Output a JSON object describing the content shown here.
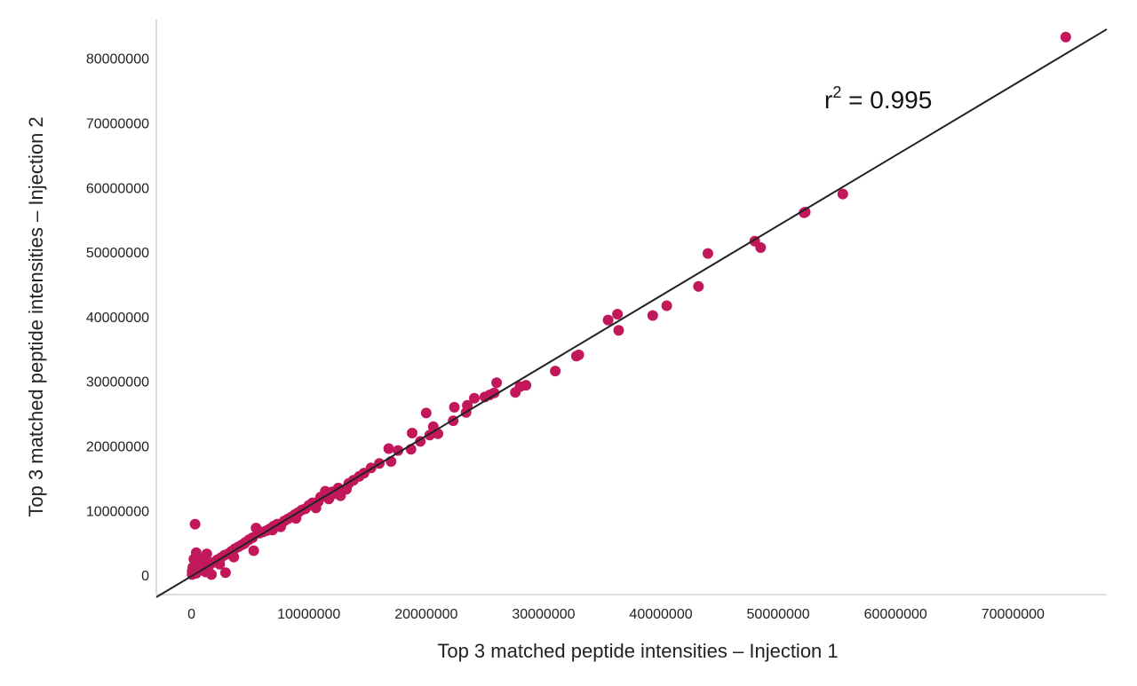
{
  "chart_data": {
    "type": "scatter",
    "title": "",
    "xlabel": "Top 3 matched peptide intensities – Injection 1",
    "ylabel": "Top 3 matched peptide intensities – Injection 2",
    "xlim": [
      -3000000,
      78000000
    ],
    "ylim": [
      -3000000,
      86000000
    ],
    "x_ticks": [
      0,
      10000000,
      20000000,
      30000000,
      40000000,
      50000000,
      60000000,
      70000000
    ],
    "x_tick_labels": [
      "0",
      "10000000",
      "20000000",
      "30000000",
      "40000000",
      "50000000",
      "60000000",
      "70000000"
    ],
    "y_ticks": [
      0,
      10000000,
      20000000,
      30000000,
      40000000,
      50000000,
      60000000,
      70000000,
      80000000
    ],
    "y_tick_labels": [
      "0",
      "10000000",
      "20000000",
      "30000000",
      "40000000",
      "50000000",
      "60000000",
      "70000000",
      "80000000"
    ],
    "grid": false,
    "marker_color": "#c2185b",
    "fit_line_color": "#222222",
    "annotation": {
      "base": "r",
      "sup": "2",
      "rest": " = 0.995"
    },
    "fit_line": [
      [
        -3000000,
        -3400000
      ],
      [
        78000000,
        84500000
      ]
    ],
    "points": [
      [
        74500000,
        83300000
      ],
      [
        55500000,
        59000000
      ],
      [
        52300000,
        56200000
      ],
      [
        52200000,
        56100000
      ],
      [
        48500000,
        50700000
      ],
      [
        48000000,
        51700000
      ],
      [
        44000000,
        49800000
      ],
      [
        43200000,
        44700000
      ],
      [
        40500000,
        41700000
      ],
      [
        39300000,
        40200000
      ],
      [
        36300000,
        40400000
      ],
      [
        36400000,
        37900000
      ],
      [
        35500000,
        39500000
      ],
      [
        33000000,
        34100000
      ],
      [
        32800000,
        33900000
      ],
      [
        31000000,
        31600000
      ],
      [
        28500000,
        29400000
      ],
      [
        28000000,
        29200000
      ],
      [
        27600000,
        28300000
      ],
      [
        26000000,
        29800000
      ],
      [
        25800000,
        28200000
      ],
      [
        25400000,
        27900000
      ],
      [
        25000000,
        27600000
      ],
      [
        24100000,
        27400000
      ],
      [
        23500000,
        26300000
      ],
      [
        23400000,
        25200000
      ],
      [
        22400000,
        26000000
      ],
      [
        22300000,
        23900000
      ],
      [
        21000000,
        21900000
      ],
      [
        20600000,
        23000000
      ],
      [
        20300000,
        21700000
      ],
      [
        20000000,
        25100000
      ],
      [
        19500000,
        20700000
      ],
      [
        18700000,
        19500000
      ],
      [
        18800000,
        22000000
      ],
      [
        17600000,
        19300000
      ],
      [
        17000000,
        17600000
      ],
      [
        16800000,
        19600000
      ],
      [
        16000000,
        17300000
      ],
      [
        15300000,
        16600000
      ],
      [
        14700000,
        15800000
      ],
      [
        14300000,
        15300000
      ],
      [
        13800000,
        14700000
      ],
      [
        13400000,
        14200000
      ],
      [
        13200000,
        13300000
      ],
      [
        12500000,
        13500000
      ],
      [
        12200000,
        12600000
      ],
      [
        12000000,
        12900000
      ],
      [
        11700000,
        11800000
      ],
      [
        11400000,
        13000000
      ],
      [
        11000000,
        12100000
      ],
      [
        10800000,
        11400000
      ],
      [
        10300000,
        11200000
      ],
      [
        10000000,
        10800000
      ],
      [
        9700000,
        10300000
      ],
      [
        9400000,
        10100000
      ],
      [
        9100000,
        9700000
      ],
      [
        8800000,
        9400000
      ],
      [
        8500000,
        9000000
      ],
      [
        8200000,
        8700000
      ],
      [
        7900000,
        8400000
      ],
      [
        7600000,
        7500000
      ],
      [
        7300000,
        7900000
      ],
      [
        7000000,
        7600000
      ],
      [
        6700000,
        7200000
      ],
      [
        6400000,
        6900000
      ],
      [
        6100000,
        6700000
      ],
      [
        5800000,
        6500000
      ],
      [
        5500000,
        7300000
      ],
      [
        5300000,
        3800000
      ],
      [
        5200000,
        5800000
      ],
      [
        4900000,
        5500000
      ],
      [
        4600000,
        5100000
      ],
      [
        4300000,
        4700000
      ],
      [
        4000000,
        4400000
      ],
      [
        3700000,
        4100000
      ],
      [
        3400000,
        3700000
      ],
      [
        3100000,
        3300000
      ],
      [
        2800000,
        3100000
      ],
      [
        2900000,
        400000
      ],
      [
        2500000,
        2700000
      ],
      [
        2200000,
        2400000
      ],
      [
        1900000,
        2000000
      ],
      [
        1700000,
        1900000
      ],
      [
        1500000,
        1500000
      ],
      [
        1300000,
        3300000
      ],
      [
        1100000,
        1300000
      ],
      [
        1000000,
        2500000
      ],
      [
        900000,
        1000000
      ],
      [
        700000,
        800000
      ],
      [
        600000,
        1900000
      ],
      [
        500000,
        600000
      ],
      [
        400000,
        3500000
      ],
      [
        400000,
        300000
      ],
      [
        300000,
        7900000
      ],
      [
        300000,
        1000000
      ],
      [
        200000,
        300000
      ],
      [
        200000,
        2500000
      ],
      [
        100000,
        200000
      ],
      [
        100000,
        1200000
      ],
      [
        50000,
        100000
      ],
      [
        50000,
        600000
      ],
      [
        1700000,
        100000
      ],
      [
        1200000,
        500000
      ],
      [
        800000,
        1500000
      ],
      [
        2400000,
        1700000
      ],
      [
        3600000,
        2800000
      ],
      [
        4500000,
        4900000
      ],
      [
        6900000,
        7000000
      ],
      [
        8900000,
        8800000
      ],
      [
        10600000,
        10400000
      ],
      [
        12700000,
        12300000
      ]
    ]
  }
}
